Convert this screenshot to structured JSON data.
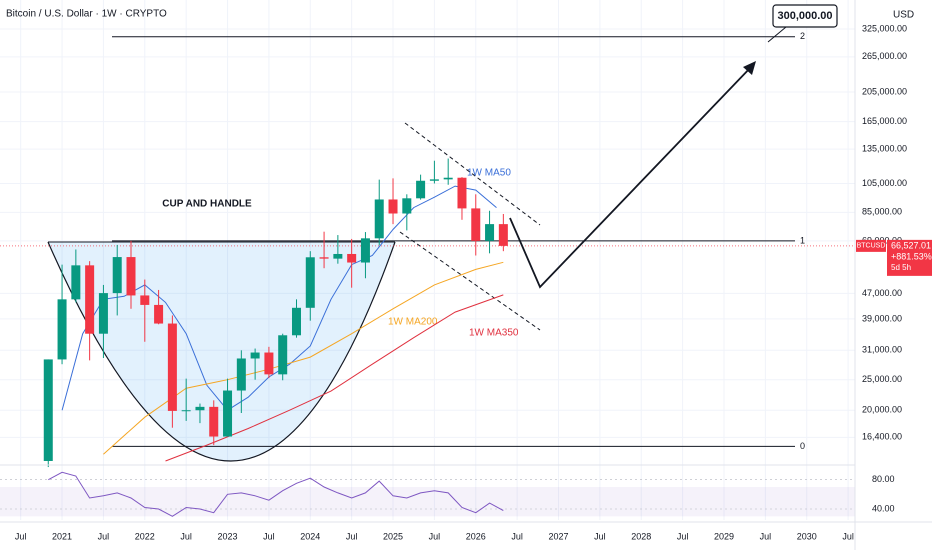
{
  "chart_data": {
    "type": "candlestick",
    "title": "Bitcoin / U.S. Dollar · 1W · CRYPTO",
    "currency": "USD",
    "log_scale": true,
    "grid": true,
    "xlim": [
      "2020-04",
      "2030-08"
    ],
    "xticks": [
      {
        "value": "2020-07",
        "label": "Jul"
      },
      {
        "value": "2021-01",
        "label": "2021"
      },
      {
        "value": "2021-07",
        "label": "Jul"
      },
      {
        "value": "2022-01",
        "label": "2022"
      },
      {
        "value": "2022-07",
        "label": "Jul"
      },
      {
        "value": "2023-01",
        "label": "2023"
      },
      {
        "value": "2023-07",
        "label": "Jul"
      },
      {
        "value": "2024-01",
        "label": "2024"
      },
      {
        "value": "2024-07",
        "label": "Jul"
      },
      {
        "value": "2025-01",
        "label": "2025"
      },
      {
        "value": "2025-07",
        "label": "Jul"
      },
      {
        "value": "2026-01",
        "label": "2026"
      },
      {
        "value": "2026-07",
        "label": "Jul"
      },
      {
        "value": "2027-01",
        "label": "2027"
      },
      {
        "value": "2027-07",
        "label": "Jul"
      },
      {
        "value": "2028-01",
        "label": "2028"
      },
      {
        "value": "2028-07",
        "label": "Jul"
      },
      {
        "value": "2029-01",
        "label": "2029"
      },
      {
        "value": "2029-07",
        "label": "Jul"
      },
      {
        "value": "2030-01",
        "label": "2030"
      },
      {
        "value": "2030-07",
        "label": "Jul"
      }
    ],
    "ylim": [
      13400,
      347000
    ],
    "yticks": [
      {
        "value": 325000,
        "label": "325,000.00"
      },
      {
        "value": 265000,
        "label": "265,000.00"
      },
      {
        "value": 205000,
        "label": "205,000.00"
      },
      {
        "value": 165000,
        "label": "165,000.00"
      },
      {
        "value": 135000,
        "label": "135,000.00"
      },
      {
        "value": 105000,
        "label": "105,000.00"
      },
      {
        "value": 85000,
        "label": "85,000.00"
      },
      {
        "value": 69000,
        "label": "69,000.00"
      },
      {
        "value": 47000,
        "label": "47,000.00"
      },
      {
        "value": 39000,
        "label": "39,000.00"
      },
      {
        "value": 31000,
        "label": "31,000.00"
      },
      {
        "value": 25000,
        "label": "25,000.00"
      },
      {
        "value": 20000,
        "label": "20,000.00"
      },
      {
        "value": 16400,
        "label": "16,400.00"
      }
    ],
    "up_color": "#089981",
    "down_color": "#f23645",
    "x": [
      "2020-11",
      "2021-01",
      "2021-03",
      "2021-05",
      "2021-07",
      "2021-09",
      "2021-11",
      "2022-01",
      "2022-03",
      "2022-05",
      "2022-07",
      "2022-09",
      "2022-11",
      "2023-01",
      "2023-03",
      "2023-05",
      "2023-07",
      "2023-09",
      "2023-11",
      "2024-01",
      "2024-03",
      "2024-05",
      "2024-07",
      "2024-09",
      "2024-11",
      "2025-01",
      "2025-03",
      "2025-05",
      "2025-07",
      "2025-09",
      "2025-11",
      "2026-01",
      "2026-03",
      "2026-05"
    ],
    "open": [
      13800,
      29000,
      45000,
      57700,
      35000,
      47100,
      61300,
      46300,
      43200,
      37700,
      19900,
      20000,
      20500,
      16500,
      23100,
      29200,
      30500,
      26000,
      34600,
      42300,
      61200,
      60600,
      62700,
      58900,
      70300,
      93400,
      84300,
      94200,
      107100,
      108200,
      109500,
      87500,
      69000,
      78000
    ],
    "high": [
      29000,
      58000,
      64800,
      59500,
      50000,
      67000,
      69000,
      52000,
      48200,
      40000,
      25200,
      21000,
      21500,
      25200,
      31000,
      31400,
      31800,
      35000,
      45000,
      64000,
      73800,
      72000,
      70000,
      73600,
      108000,
      109000,
      97000,
      112000,
      124000,
      126000,
      110000,
      97000,
      86000,
      84000
    ],
    "low": [
      13200,
      28000,
      44000,
      28800,
      29300,
      40000,
      42000,
      33000,
      37500,
      17600,
      18500,
      18200,
      15500,
      16500,
      19600,
      25000,
      25300,
      24900,
      34000,
      38500,
      56500,
      58400,
      49000,
      52500,
      66800,
      78000,
      74500,
      93300,
      105000,
      104000,
      80500,
      62000,
      63000,
      64000
    ],
    "close": [
      29000,
      45000,
      57700,
      35000,
      47100,
      61300,
      46300,
      43200,
      37700,
      19900,
      20000,
      20500,
      16500,
      23100,
      29200,
      30500,
      26000,
      34600,
      42300,
      61200,
      60600,
      62700,
      58900,
      70300,
      93400,
      84300,
      94200,
      107100,
      108200,
      109500,
      87500,
      69000,
      78000,
      66527.01
    ],
    "moving_averages": [
      {
        "name": "1W MA50",
        "color": "#3a6fd8",
        "x": [
          "2021-01",
          "2021-04",
          "2021-07",
          "2021-10",
          "2022-01",
          "2022-04",
          "2022-07",
          "2022-10",
          "2023-01",
          "2023-04",
          "2023-07",
          "2023-10",
          "2024-01",
          "2024-04",
          "2024-07",
          "2024-10",
          "2025-01",
          "2025-04",
          "2025-07",
          "2025-10",
          "2026-01",
          "2026-04"
        ],
        "values": [
          20000,
          35000,
          45000,
          46000,
          50000,
          44000,
          35000,
          24000,
          20000,
          22000,
          25500,
          28000,
          32000,
          45000,
          58000,
          62000,
          75000,
          88000,
          95000,
          103000,
          100000,
          88000
        ]
      },
      {
        "name": "1W MA200",
        "color": "#f5a623",
        "x": [
          "2021-07",
          "2022-01",
          "2022-07",
          "2023-01",
          "2023-07",
          "2024-01",
          "2024-07",
          "2025-01",
          "2025-07",
          "2026-01",
          "2026-05"
        ],
        "values": [
          14500,
          19000,
          23500,
          25000,
          27000,
          29500,
          35000,
          42000,
          50000,
          56000,
          59000
        ]
      },
      {
        "name": "1W MA350",
        "color": "#e0313f",
        "x": [
          "2022-04",
          "2022-10",
          "2023-04",
          "2023-10",
          "2024-04",
          "2024-10",
          "2025-04",
          "2025-10",
          "2026-05"
        ],
        "values": [
          13800,
          15500,
          17500,
          20000,
          23000,
          28000,
          34000,
          41000,
          46500
        ]
      }
    ],
    "fib_levels": [
      {
        "label": "0",
        "value": 15350
      },
      {
        "label": "1",
        "value": 69000
      },
      {
        "label": "2",
        "value": 307000
      }
    ],
    "annotations": {
      "pattern": "CUP AND HANDLE",
      "target": "300,000.00"
    },
    "last_price": {
      "symbol": "BTCUSD",
      "value": 66527.01,
      "label": "66,527.01",
      "change": "+881.53%",
      "countdown": "5d 5h"
    },
    "rsi": {
      "color": "#7e57c2",
      "ylim": [
        25,
        100
      ],
      "yticks": [
        {
          "value": 80,
          "label": "80.00"
        },
        {
          "value": 40,
          "label": "40.00"
        }
      ],
      "values": [
        80,
        90,
        85,
        55,
        58,
        62,
        55,
        42,
        40,
        30,
        42,
        40,
        35,
        60,
        62,
        58,
        52,
        65,
        75,
        82,
        70,
        62,
        55,
        62,
        78,
        58,
        55,
        62,
        65,
        62,
        42,
        35,
        48,
        38
      ]
    }
  }
}
